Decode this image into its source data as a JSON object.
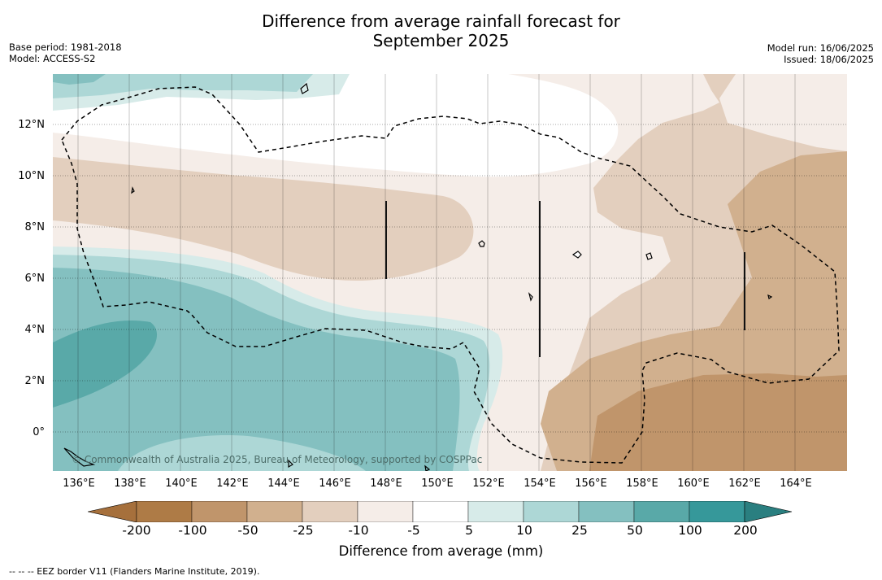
{
  "title_line1": "Difference from average rainfall forecast for",
  "title_line2": "September 2025",
  "base_period": "Base period: 1981-2018",
  "model": "Model: ACCESS-S2",
  "model_run": "Model run: 16/06/2025",
  "issued": "Issued: 18/06/2025",
  "copyright": "© Commonwealth of Australia 2025, Bureau of Meteorology, supported by COSPPac",
  "lat_labels": [
    "12°N",
    "10°N",
    "8°N",
    "6°N",
    "4°N",
    "2°N",
    "0°"
  ],
  "lon_labels": [
    "136°E",
    "138°E",
    "140°E",
    "142°E",
    "144°E",
    "146°E",
    "148°E",
    "150°E",
    "152°E",
    "154°E",
    "156°E",
    "158°E",
    "160°E",
    "162°E",
    "164°E"
  ],
  "colorbar": {
    "ticks": [
      "-200",
      "-100",
      "-50",
      "-25",
      "-10",
      "-5",
      "5",
      "10",
      "25",
      "50",
      "100",
      "200"
    ],
    "colors": [
      "#a6703c",
      "#ae7b46",
      "#c0956b",
      "#d1b08e",
      "#e3cfbe",
      "#f5ede8",
      "#ffffff",
      "#d7ebe9",
      "#add7d6",
      "#84c0c0",
      "#59a9a8",
      "#36989a",
      "#2a7f80"
    ],
    "title": "Difference from average (mm)"
  },
  "footer": "--  --  -- EEZ border V11 (Flanders Marine Institute, 2019)."
}
